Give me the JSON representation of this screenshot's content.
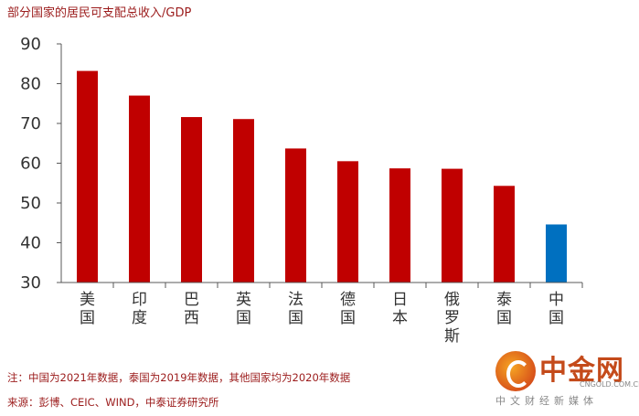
{
  "title": "部分国家的居民可支配总收入/GDP",
  "chart_data": {
    "type": "bar",
    "title": "部分国家的居民可支配总收入/GDP",
    "categories": [
      "美国",
      "印度",
      "巴西",
      "英国",
      "法国",
      "德国",
      "日本",
      "俄罗斯",
      "泰国",
      "中国"
    ],
    "values": [
      83.2,
      77.0,
      71.6,
      71.1,
      63.7,
      60.5,
      58.7,
      58.6,
      54.3,
      44.6
    ],
    "ylim": [
      30,
      90
    ],
    "yticks": [
      30,
      40,
      50,
      60,
      70,
      80,
      90
    ],
    "xlabel": "",
    "ylabel": "",
    "grid": false,
    "colors": {
      "default": "#c00000",
      "highlight": "#0070c0",
      "highlight_category": "中国"
    }
  },
  "footnotes": {
    "note": "注：中国为2021年数据，泰国为2019年数据，其他国家均为2020年数据",
    "source": "来源：彭博、CEIC、WIND，中泰证券研究所"
  },
  "watermark": {
    "name": "中金网",
    "domain": "CNGOLD.COM.CN",
    "slogan": "中文财经新媒体"
  }
}
